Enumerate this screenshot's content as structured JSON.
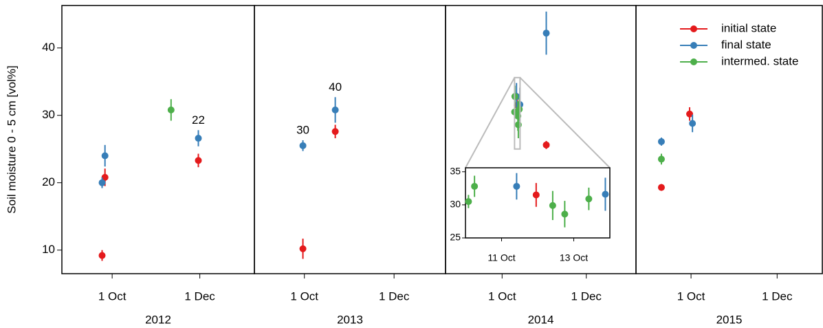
{
  "chart_data": [
    {
      "type": "scatter",
      "ylabel": "Soil moisture 0 - 5 cm [vol%]",
      "xlabel": "2012",
      "xlim": [
        "2012-08-27",
        "2013-01-08"
      ],
      "ylim": [
        6.5,
        46.3
      ],
      "yticks": [
        10,
        20,
        30,
        40
      ],
      "xticks": [
        {
          "value": "2012-10-01",
          "label": "1 Oct"
        },
        {
          "value": "2012-12-01",
          "label": "1 Dec"
        }
      ],
      "series": [
        {
          "name": "initial state",
          "color": "#e41a1c",
          "x": [
            "2012-09-24",
            "2012-09-26",
            "2012-11-30"
          ],
          "values": [
            9.2,
            20.8,
            23.3
          ],
          "errors": [
            0.8,
            1.3,
            1.0
          ]
        },
        {
          "name": "final state",
          "color": "#377eb8",
          "x": [
            "2012-09-24",
            "2012-09-26",
            "2012-11-30"
          ],
          "values": [
            20.0,
            24.0,
            26.6
          ],
          "errors": [
            0.8,
            1.6,
            1.2
          ]
        },
        {
          "name": "intermed. state",
          "color": "#4daf4a",
          "x": [
            "2012-11-11"
          ],
          "values": [
            30.8
          ],
          "errors": [
            1.6
          ]
        }
      ],
      "annotations": [
        {
          "text": "22",
          "x": "2012-11-30"
        }
      ]
    },
    {
      "type": "scatter",
      "xlabel": "2013",
      "xlim": [
        "2013-08-28",
        "2014-01-05"
      ],
      "ylim": [
        6.5,
        46.3
      ],
      "xticks": [
        {
          "value": "2013-10-01",
          "label": "1 Oct"
        },
        {
          "value": "2013-12-01",
          "label": "1 Dec"
        }
      ],
      "series": [
        {
          "name": "initial state",
          "color": "#e41a1c",
          "x": [
            "2013-09-30",
            "2013-10-22"
          ],
          "values": [
            10.2,
            27.6
          ],
          "errors": [
            1.5,
            1.0
          ]
        },
        {
          "name": "final state",
          "color": "#377eb8",
          "x": [
            "2013-09-30",
            "2013-10-22"
          ],
          "values": [
            25.5,
            30.8
          ],
          "errors": [
            0.8,
            1.9
          ]
        }
      ],
      "annotations": [
        {
          "text": "30",
          "x": "2013-09-30"
        },
        {
          "text": "40",
          "x": "2013-10-22"
        }
      ]
    },
    {
      "type": "scatter",
      "xlabel": "2014",
      "xlim": [
        "2014-08-21",
        "2015-01-06"
      ],
      "ylim": [
        6.5,
        46.3
      ],
      "xticks": [
        {
          "value": "2014-10-01",
          "label": "1 Oct"
        },
        {
          "value": "2014-12-01",
          "label": "1 Dec"
        }
      ],
      "series": [
        {
          "name": "initial state",
          "color": "#e41a1c",
          "x": [
            "2014-10-11T23:00",
            "2014-11-02"
          ],
          "values": [
            31.5,
            25.6
          ],
          "errors": [
            1.8,
            0.6
          ]
        },
        {
          "name": "final state",
          "color": "#377eb8",
          "x": [
            "2014-10-11T10:00",
            "2014-10-13T21:00",
            "2014-11-02"
          ],
          "values": [
            32.8,
            31.6,
            42.2
          ],
          "errors": [
            2.0,
            2.5,
            3.2
          ]
        },
        {
          "name": "intermed. state",
          "color": "#4daf4a",
          "x": [
            "2014-10-10T02:00",
            "2014-10-10T06:00",
            "2014-10-12T10:00",
            "2014-10-12T18:00",
            "2014-10-13T10:00"
          ],
          "values": [
            30.5,
            32.8,
            29.9,
            28.6,
            30.9
          ],
          "errors": [
            1.0,
            1.6,
            2.2,
            2.0,
            1.7
          ]
        }
      ],
      "inset": {
        "xlim": [
          "2014-10-10T00:00",
          "2014-10-14T00:00"
        ],
        "ylim": [
          25,
          35.6
        ],
        "yticks": [
          25,
          30,
          35
        ],
        "xticks": [
          {
            "value": "2014-10-11",
            "label": "11 Oct"
          },
          {
            "value": "2014-10-13",
            "label": "13 Oct"
          }
        ]
      }
    },
    {
      "type": "scatter",
      "xlabel": "2015",
      "xlim": [
        "2015-08-23",
        "2016-01-02"
      ],
      "ylim": [
        6.5,
        46.3
      ],
      "xticks": [
        {
          "value": "2015-10-01",
          "label": "1 Oct"
        },
        {
          "value": "2015-12-01",
          "label": "1 Dec"
        }
      ],
      "legend": "upper right",
      "series": [
        {
          "name": "initial state",
          "color": "#e41a1c",
          "x": [
            "2015-09-10",
            "2015-09-30"
          ],
          "values": [
            19.3,
            30.2
          ],
          "errors": [
            0.5,
            1.0
          ]
        },
        {
          "name": "final state",
          "color": "#377eb8",
          "x": [
            "2015-09-10",
            "2015-10-02"
          ],
          "values": [
            26.1,
            28.8
          ],
          "errors": [
            0.6,
            1.3
          ]
        },
        {
          "name": "intermed. state",
          "color": "#4daf4a",
          "x": [
            "2015-09-10"
          ],
          "values": [
            23.5
          ],
          "errors": [
            0.8
          ]
        }
      ]
    }
  ]
}
